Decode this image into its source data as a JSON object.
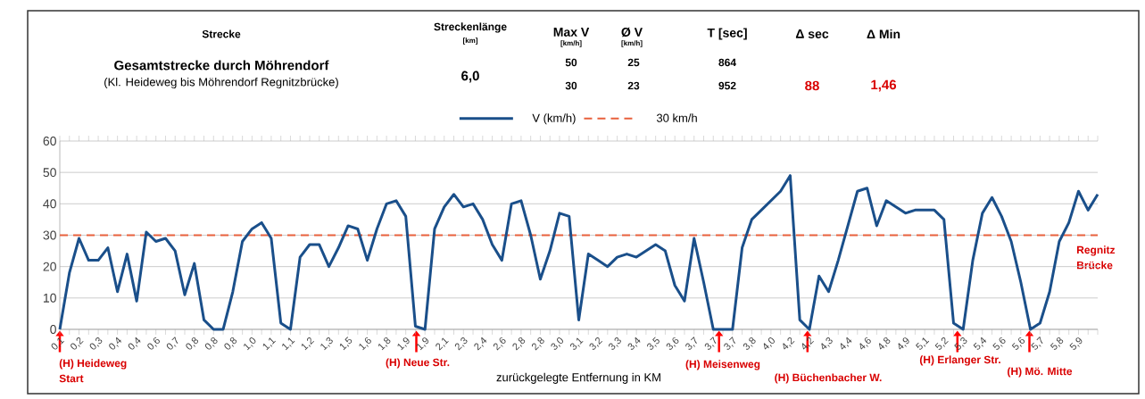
{
  "chart_data": {
    "type": "line",
    "title": "Gesamtstrecke durch Möhrendorf",
    "subtitle": "(Kl. Heideweg bis Möhrendorf Regnitzbrücke)",
    "xlabel": "zurückgelegte Entfernung in KM",
    "annotations": [
      "Strecke",
      "Streckenlänge",
      "[km]",
      "Max V",
      "[km/h]",
      "Ø V",
      "[km/h]",
      "T [sec]",
      "Δ sec",
      "Δ Min",
      "6,0",
      "50",
      "25",
      "864",
      "30",
      "23",
      "952",
      "88",
      "1,46",
      "(H) Heideweg",
      "Start",
      "(H) Neue Str.",
      "(H) Meisenweg",
      "(H) Büchenbacher W.",
      "(H) Erlanger Str.",
      "(H) Mö. Mitte",
      "Regnitz",
      "Brücke"
    ],
    "categories": [
      "0,1",
      null,
      "0,2",
      null,
      "0,3",
      null,
      "0,4",
      null,
      "0,4",
      null,
      "0,6",
      null,
      "0,7",
      null,
      "0,8",
      null,
      "0,8",
      null,
      "0,8",
      null,
      "1,0",
      null,
      "1,1",
      null,
      "1,1",
      null,
      "1,2",
      null,
      "1,3",
      null,
      "1,5",
      null,
      "1,6",
      null,
      "1,8",
      null,
      "1,9",
      null,
      "1,9",
      null,
      "2,1",
      null,
      "2,3",
      null,
      "2,4",
      null,
      "2,6",
      null,
      "2,8",
      null,
      "2,8",
      null,
      "3,0",
      null,
      "3,1",
      null,
      "3,2",
      null,
      "3,3",
      null,
      "3,4",
      null,
      "3,5",
      null,
      "3,6",
      null,
      "3,7",
      null,
      "3,7",
      null,
      "3,7",
      null,
      "3,8",
      null,
      "4,0",
      null,
      "4,2",
      null,
      "4,2",
      null,
      "4,3",
      null,
      "4,4",
      null,
      "4,6",
      null,
      "4,8",
      null,
      "4,9",
      null,
      "5,1",
      null,
      "5,2",
      null,
      "5,3",
      null,
      "5,4",
      null,
      "5,6",
      null,
      "5,6",
      null,
      "5,7",
      null,
      "5,8",
      null,
      "5,9",
      null,
      null
    ],
    "series": [
      {
        "name": "V (km/h)",
        "color": "#1a4f8a",
        "values": [
          0,
          18,
          29,
          22,
          22,
          26,
          12,
          24,
          9,
          31,
          28,
          29,
          25,
          11,
          21,
          3,
          0,
          0,
          12,
          28,
          32,
          34,
          29,
          2,
          0,
          23,
          27,
          27,
          20,
          26,
          33,
          32,
          22,
          32,
          40,
          41,
          36,
          1,
          0,
          32,
          39,
          43,
          39,
          40,
          35,
          27,
          22,
          40,
          41,
          30,
          16,
          25,
          37,
          36,
          3,
          24,
          22,
          20,
          23,
          24,
          23,
          25,
          27,
          25,
          14,
          9,
          29,
          15,
          0,
          0,
          0,
          26,
          35,
          38,
          41,
          44,
          49,
          3,
          0,
          17,
          12,
          22,
          33,
          44,
          45,
          33,
          41,
          39,
          37,
          38,
          38,
          38,
          35,
          2,
          0,
          22,
          37,
          42,
          36,
          28,
          15,
          0,
          2,
          12,
          28,
          34,
          44,
          38,
          43
        ]
      }
    ],
    "ref_lines": [
      {
        "axis": "y",
        "value": 30,
        "label": "30 km/h",
        "color": "#e8603c",
        "line_style": "dashed"
      }
    ],
    "ylim": [
      0,
      60
    ],
    "yticks": [
      0,
      10,
      20,
      30,
      40,
      50,
      60
    ],
    "grid": "y",
    "legend": "top"
  }
}
